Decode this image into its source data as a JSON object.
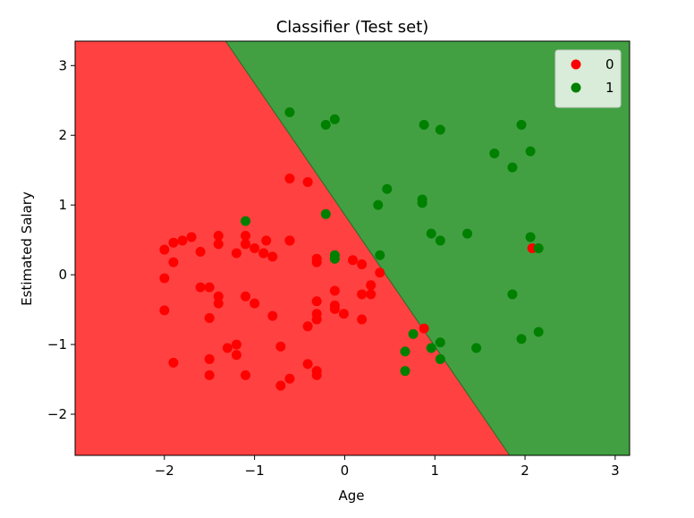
{
  "chart_data": {
    "type": "scatter",
    "title": "Classifier (Test set)",
    "x_label": "Age",
    "y_label": "Estimated Salary",
    "xlim": [
      -2.99,
      3.16
    ],
    "ylim": [
      -2.59,
      3.35
    ],
    "xticks": [
      {
        "value": -2,
        "label": "−2"
      },
      {
        "value": -1,
        "label": "−1"
      },
      0,
      1,
      2,
      3
    ],
    "yticks": [
      {
        "value": -2,
        "label": "−2"
      },
      {
        "value": -1,
        "label": "−1"
      },
      0,
      1,
      2,
      3
    ],
    "legend": "upper right",
    "regions": [
      {
        "color": "#ff4141"
      },
      {
        "color": "#42a042"
      }
    ],
    "boundary": {
      "x": [
        -1.32,
        1.83
      ],
      "y": [
        3.35,
        -2.59
      ]
    },
    "series": [
      {
        "name": "0",
        "color": "#ff0000",
        "x": [
          -2.0,
          -1.9,
          -1.8,
          -1.7,
          -1.4,
          -1.1,
          -0.87,
          -0.61,
          -2.0,
          -1.9,
          -2.0,
          -1.6,
          -1.4,
          -1.1,
          -1.0,
          -0.9,
          -0.8,
          -1.2,
          -1.6,
          -1.5,
          -1.4,
          -1.4,
          -1.5,
          -1.1,
          -1.0,
          -0.8,
          -1.5,
          -1.5,
          -1.9,
          -1.3,
          -1.2,
          -1.2,
          -1.1,
          -0.71,
          -0.71,
          -0.61,
          -0.41,
          -0.31,
          -0.31,
          -0.41,
          -0.31,
          -0.31,
          -0.31,
          -0.31,
          -0.11,
          -0.11,
          -0.11,
          -0.01,
          0.09,
          0.19,
          0.19,
          0.19,
          0.29,
          0.39,
          0.29,
          0.88,
          2.08,
          -0.61,
          -0.41,
          -0.61,
          -0.9,
          -0.31
        ],
        "y": [
          0.36,
          0.46,
          0.49,
          0.54,
          0.56,
          0.56,
          0.49,
          0.49,
          -0.05,
          0.18,
          -0.51,
          0.33,
          0.44,
          0.44,
          0.38,
          0.31,
          0.26,
          0.31,
          -0.18,
          -0.18,
          -0.31,
          -0.41,
          -0.62,
          -0.31,
          -0.41,
          -0.59,
          -1.21,
          -1.44,
          -1.26,
          -1.05,
          -1.0,
          -1.15,
          -1.44,
          -1.03,
          -1.59,
          -1.49,
          -1.28,
          -1.38,
          -1.44,
          -0.74,
          -0.56,
          -0.64,
          0.18,
          0.23,
          -0.23,
          -0.44,
          -0.49,
          -0.56,
          0.21,
          0.15,
          -0.28,
          -0.64,
          -0.28,
          0.03,
          -0.15,
          -0.77,
          0.38,
          1.38,
          1.33,
          0.49,
          0.31,
          -0.38
        ]
      },
      {
        "name": "1",
        "color": "#008000",
        "x": [
          -0.61,
          -0.11,
          -0.21,
          0.88,
          1.06,
          1.96,
          1.66,
          1.86,
          2.06,
          0.47,
          0.86,
          0.86,
          0.37,
          -0.21,
          -1.1,
          0.96,
          1.06,
          1.36,
          2.06,
          2.15,
          0.39,
          -0.11,
          -0.11,
          1.86,
          1.96,
          2.15,
          0.76,
          0.67,
          0.67,
          0.96,
          1.06,
          1.06,
          1.46
        ],
        "y": [
          2.33,
          2.23,
          2.15,
          2.15,
          2.08,
          2.15,
          1.74,
          1.54,
          1.77,
          1.23,
          1.08,
          1.03,
          1.0,
          0.87,
          0.77,
          0.59,
          0.49,
          0.59,
          0.54,
          0.38,
          0.28,
          0.28,
          0.23,
          -0.28,
          -0.92,
          -0.82,
          -0.85,
          -1.1,
          -1.38,
          -1.05,
          -0.97,
          -1.21,
          -1.05
        ]
      }
    ]
  }
}
